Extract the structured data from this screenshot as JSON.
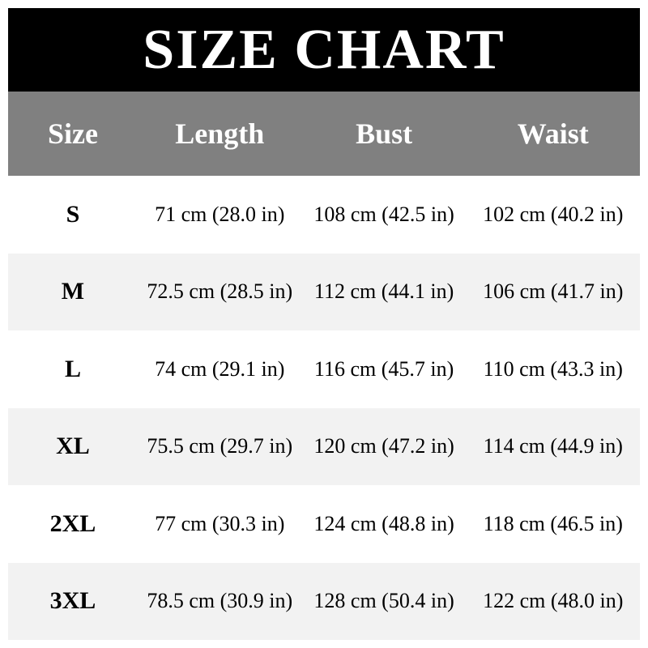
{
  "title": "SIZE CHART",
  "table": {
    "columns": [
      "Size",
      "Length",
      "Bust",
      "Waist"
    ],
    "rows": [
      {
        "size": "S",
        "length": "71 cm (28.0 in)",
        "bust": "108 cm (42.5 in)",
        "waist": "102 cm (40.2 in)"
      },
      {
        "size": "M",
        "length": "72.5 cm (28.5 in)",
        "bust": "112 cm (44.1 in)",
        "waist": "106 cm (41.7 in)"
      },
      {
        "size": "L",
        "length": "74 cm (29.1 in)",
        "bust": "116 cm (45.7 in)",
        "waist": "110 cm (43.3 in)"
      },
      {
        "size": "XL",
        "length": "75.5 cm (29.7 in)",
        "bust": "120 cm (47.2 in)",
        "waist": "114 cm (44.9 in)"
      },
      {
        "size": "2XL",
        "length": "77 cm (30.3 in)",
        "bust": "124 cm (48.8 in)",
        "waist": "118 cm (46.5 in)"
      },
      {
        "size": "3XL",
        "length": "78.5 cm (30.9 in)",
        "bust": "128 cm (50.4 in)",
        "waist": "122 cm (48.0 in)"
      }
    ]
  },
  "chart_data": {
    "type": "table",
    "title": "SIZE CHART",
    "columns": [
      "Size",
      "Length",
      "Bust",
      "Waist"
    ],
    "rows": [
      [
        "S",
        "71 cm (28.0 in)",
        "108 cm (42.5 in)",
        "102 cm (40.2 in)"
      ],
      [
        "M",
        "72.5 cm (28.5 in)",
        "112 cm (44.1 in)",
        "106 cm (41.7 in)"
      ],
      [
        "L",
        "74 cm (29.1 in)",
        "116 cm (45.7 in)",
        "110 cm (43.3 in)"
      ],
      [
        "XL",
        "75.5 cm (29.7 in)",
        "120 cm (47.2 in)",
        "114 cm (44.9 in)"
      ],
      [
        "2XL",
        "77 cm (30.3 in)",
        "124 cm (48.8 in)",
        "118 cm (46.5 in)"
      ],
      [
        "3XL",
        "78.5 cm (30.9 in)",
        "128 cm (50.4 in)",
        "122 cm (48.0 in)"
      ]
    ],
    "units": {
      "length_cm": [
        71,
        72.5,
        74,
        75.5,
        77,
        78.5
      ],
      "length_in": [
        28.0,
        28.5,
        29.1,
        29.7,
        30.3,
        30.9
      ],
      "bust_cm": [
        108,
        112,
        116,
        120,
        124,
        128
      ],
      "bust_in": [
        42.5,
        44.1,
        45.7,
        47.2,
        48.8,
        50.4
      ],
      "waist_cm": [
        102,
        106,
        110,
        114,
        118,
        122
      ],
      "waist_in": [
        40.2,
        41.7,
        43.3,
        44.9,
        46.5,
        48.0
      ]
    }
  },
  "colors": {
    "banner_bg": "#000000",
    "banner_text": "#ffffff",
    "header_bg": "#808080",
    "header_text": "#ffffff",
    "row_bg": "#ffffff",
    "row_alt_bg": "#f2f2f2",
    "cell_text": "#000000"
  }
}
